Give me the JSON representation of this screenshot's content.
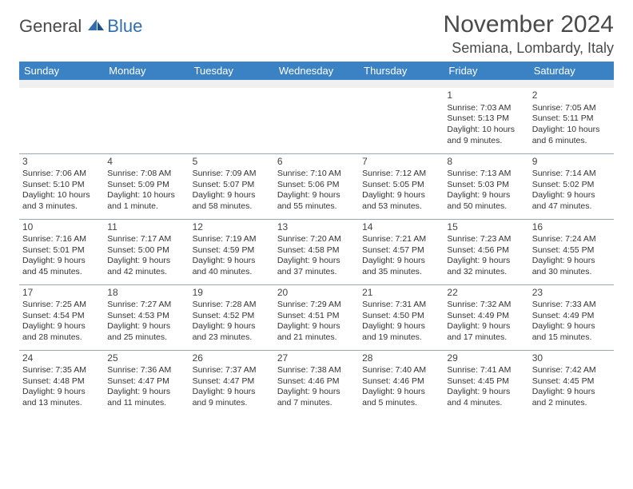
{
  "logo": {
    "part1": "General",
    "part2": "Blue"
  },
  "title": "November 2024",
  "location": "Semiana, Lombardy, Italy",
  "colors": {
    "header_bg": "#3b82c4",
    "header_fg": "#ffffff",
    "spacer_bg": "#f0f0f0",
    "rule": "#9aa8b5",
    "text": "#333333",
    "logo_gray": "#4a4a4a",
    "logo_blue": "#2f6fb1"
  },
  "day_headers": [
    "Sunday",
    "Monday",
    "Tuesday",
    "Wednesday",
    "Thursday",
    "Friday",
    "Saturday"
  ],
  "weeks": [
    [
      null,
      null,
      null,
      null,
      null,
      {
        "n": "1",
        "sr": "Sunrise: 7:03 AM",
        "ss": "Sunset: 5:13 PM",
        "dl": "Daylight: 10 hours and 9 minutes."
      },
      {
        "n": "2",
        "sr": "Sunrise: 7:05 AM",
        "ss": "Sunset: 5:11 PM",
        "dl": "Daylight: 10 hours and 6 minutes."
      }
    ],
    [
      {
        "n": "3",
        "sr": "Sunrise: 7:06 AM",
        "ss": "Sunset: 5:10 PM",
        "dl": "Daylight: 10 hours and 3 minutes."
      },
      {
        "n": "4",
        "sr": "Sunrise: 7:08 AM",
        "ss": "Sunset: 5:09 PM",
        "dl": "Daylight: 10 hours and 1 minute."
      },
      {
        "n": "5",
        "sr": "Sunrise: 7:09 AM",
        "ss": "Sunset: 5:07 PM",
        "dl": "Daylight: 9 hours and 58 minutes."
      },
      {
        "n": "6",
        "sr": "Sunrise: 7:10 AM",
        "ss": "Sunset: 5:06 PM",
        "dl": "Daylight: 9 hours and 55 minutes."
      },
      {
        "n": "7",
        "sr": "Sunrise: 7:12 AM",
        "ss": "Sunset: 5:05 PM",
        "dl": "Daylight: 9 hours and 53 minutes."
      },
      {
        "n": "8",
        "sr": "Sunrise: 7:13 AM",
        "ss": "Sunset: 5:03 PM",
        "dl": "Daylight: 9 hours and 50 minutes."
      },
      {
        "n": "9",
        "sr": "Sunrise: 7:14 AM",
        "ss": "Sunset: 5:02 PM",
        "dl": "Daylight: 9 hours and 47 minutes."
      }
    ],
    [
      {
        "n": "10",
        "sr": "Sunrise: 7:16 AM",
        "ss": "Sunset: 5:01 PM",
        "dl": "Daylight: 9 hours and 45 minutes."
      },
      {
        "n": "11",
        "sr": "Sunrise: 7:17 AM",
        "ss": "Sunset: 5:00 PM",
        "dl": "Daylight: 9 hours and 42 minutes."
      },
      {
        "n": "12",
        "sr": "Sunrise: 7:19 AM",
        "ss": "Sunset: 4:59 PM",
        "dl": "Daylight: 9 hours and 40 minutes."
      },
      {
        "n": "13",
        "sr": "Sunrise: 7:20 AM",
        "ss": "Sunset: 4:58 PM",
        "dl": "Daylight: 9 hours and 37 minutes."
      },
      {
        "n": "14",
        "sr": "Sunrise: 7:21 AM",
        "ss": "Sunset: 4:57 PM",
        "dl": "Daylight: 9 hours and 35 minutes."
      },
      {
        "n": "15",
        "sr": "Sunrise: 7:23 AM",
        "ss": "Sunset: 4:56 PM",
        "dl": "Daylight: 9 hours and 32 minutes."
      },
      {
        "n": "16",
        "sr": "Sunrise: 7:24 AM",
        "ss": "Sunset: 4:55 PM",
        "dl": "Daylight: 9 hours and 30 minutes."
      }
    ],
    [
      {
        "n": "17",
        "sr": "Sunrise: 7:25 AM",
        "ss": "Sunset: 4:54 PM",
        "dl": "Daylight: 9 hours and 28 minutes."
      },
      {
        "n": "18",
        "sr": "Sunrise: 7:27 AM",
        "ss": "Sunset: 4:53 PM",
        "dl": "Daylight: 9 hours and 25 minutes."
      },
      {
        "n": "19",
        "sr": "Sunrise: 7:28 AM",
        "ss": "Sunset: 4:52 PM",
        "dl": "Daylight: 9 hours and 23 minutes."
      },
      {
        "n": "20",
        "sr": "Sunrise: 7:29 AM",
        "ss": "Sunset: 4:51 PM",
        "dl": "Daylight: 9 hours and 21 minutes."
      },
      {
        "n": "21",
        "sr": "Sunrise: 7:31 AM",
        "ss": "Sunset: 4:50 PM",
        "dl": "Daylight: 9 hours and 19 minutes."
      },
      {
        "n": "22",
        "sr": "Sunrise: 7:32 AM",
        "ss": "Sunset: 4:49 PM",
        "dl": "Daylight: 9 hours and 17 minutes."
      },
      {
        "n": "23",
        "sr": "Sunrise: 7:33 AM",
        "ss": "Sunset: 4:49 PM",
        "dl": "Daylight: 9 hours and 15 minutes."
      }
    ],
    [
      {
        "n": "24",
        "sr": "Sunrise: 7:35 AM",
        "ss": "Sunset: 4:48 PM",
        "dl": "Daylight: 9 hours and 13 minutes."
      },
      {
        "n": "25",
        "sr": "Sunrise: 7:36 AM",
        "ss": "Sunset: 4:47 PM",
        "dl": "Daylight: 9 hours and 11 minutes."
      },
      {
        "n": "26",
        "sr": "Sunrise: 7:37 AM",
        "ss": "Sunset: 4:47 PM",
        "dl": "Daylight: 9 hours and 9 minutes."
      },
      {
        "n": "27",
        "sr": "Sunrise: 7:38 AM",
        "ss": "Sunset: 4:46 PM",
        "dl": "Daylight: 9 hours and 7 minutes."
      },
      {
        "n": "28",
        "sr": "Sunrise: 7:40 AM",
        "ss": "Sunset: 4:46 PM",
        "dl": "Daylight: 9 hours and 5 minutes."
      },
      {
        "n": "29",
        "sr": "Sunrise: 7:41 AM",
        "ss": "Sunset: 4:45 PM",
        "dl": "Daylight: 9 hours and 4 minutes."
      },
      {
        "n": "30",
        "sr": "Sunrise: 7:42 AM",
        "ss": "Sunset: 4:45 PM",
        "dl": "Daylight: 9 hours and 2 minutes."
      }
    ]
  ]
}
